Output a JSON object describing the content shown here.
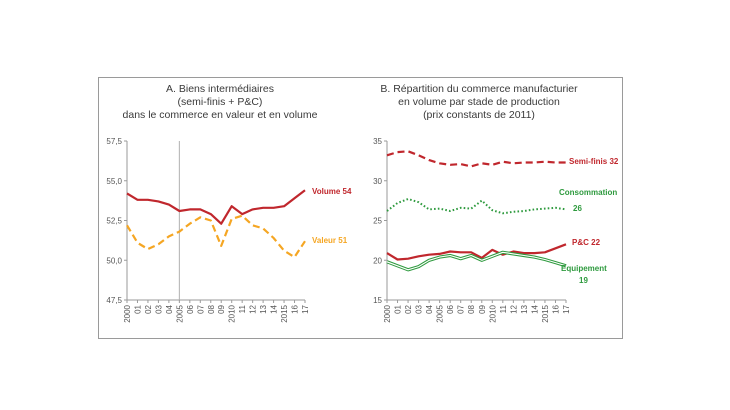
{
  "chart_data": [
    {
      "type": "line",
      "title_lines": [
        "A. Biens intermédiaires",
        "(semi-finis + P&C)",
        "dans le commerce en valeur et en volume"
      ],
      "x": [
        "2000",
        "01",
        "02",
        "03",
        "04",
        "2005",
        "06",
        "07",
        "08",
        "09",
        "2010",
        "11",
        "12",
        "13",
        "14",
        "2015",
        "16",
        "17"
      ],
      "ylim": [
        47.5,
        57.5
      ],
      "yticks": [
        "47,5",
        "50,0",
        "52,5",
        "55,0",
        "57,5"
      ],
      "grid": false,
      "series": [
        {
          "name": "Volume 54",
          "style": "solid",
          "color": "#c0272d",
          "values": [
            54.2,
            53.8,
            53.8,
            53.7,
            53.5,
            53.1,
            53.2,
            53.2,
            52.9,
            52.3,
            53.4,
            52.9,
            53.2,
            53.3,
            53.3,
            53.4,
            53.9,
            54.4
          ]
        },
        {
          "name": "Valeur 51",
          "style": "dashed",
          "color": "#f5a623",
          "values": [
            52.2,
            51.1,
            50.7,
            51.0,
            51.5,
            51.8,
            52.3,
            52.7,
            52.5,
            50.9,
            52.6,
            52.8,
            52.2,
            52.0,
            51.4,
            50.6,
            50.2,
            51.2
          ]
        }
      ]
    },
    {
      "type": "line",
      "title_lines": [
        "B. Répartition du commerce manufacturier",
        "en volume par stade de production",
        "(prix constants de 2011)"
      ],
      "x": [
        "2000",
        "01",
        "02",
        "03",
        "04",
        "2005",
        "06",
        "07",
        "08",
        "09",
        "2010",
        "11",
        "12",
        "13",
        "14",
        "2015",
        "16",
        "17"
      ],
      "ylim": [
        15,
        35
      ],
      "yticks": [
        "15",
        "20",
        "25",
        "30",
        "35"
      ],
      "grid": false,
      "series": [
        {
          "name": "Semi-finis 32",
          "style": "dashed",
          "color": "#c0272d",
          "values": [
            33.2,
            33.6,
            33.7,
            33.2,
            32.6,
            32.2,
            32.0,
            32.1,
            31.8,
            32.2,
            32.0,
            32.4,
            32.2,
            32.3,
            32.3,
            32.4,
            32.3,
            32.3
          ]
        },
        {
          "name": "Consommation 26",
          "style": "dotted",
          "color": "#2e9a3e",
          "values": [
            26.2,
            27.2,
            27.7,
            27.3,
            26.4,
            26.5,
            26.2,
            26.6,
            26.5,
            27.5,
            26.3,
            25.9,
            26.1,
            26.2,
            26.4,
            26.5,
            26.6,
            26.4
          ]
        },
        {
          "name": "P&C 22",
          "style": "solid",
          "color": "#c0272d",
          "values": [
            20.9,
            20.1,
            20.2,
            20.5,
            20.7,
            20.8,
            21.1,
            21.0,
            21.0,
            20.3,
            21.3,
            20.7,
            21.1,
            20.9,
            20.9,
            21.0,
            21.5,
            22.0
          ]
        },
        {
          "name": "Equipement 19",
          "style": "double",
          "color": "#2e9a3e",
          "values": [
            19.8,
            19.3,
            18.8,
            19.2,
            20.0,
            20.4,
            20.6,
            20.2,
            20.6,
            20.0,
            20.5,
            21.0,
            20.8,
            20.6,
            20.4,
            20.1,
            19.7,
            19.3
          ]
        }
      ]
    }
  ]
}
